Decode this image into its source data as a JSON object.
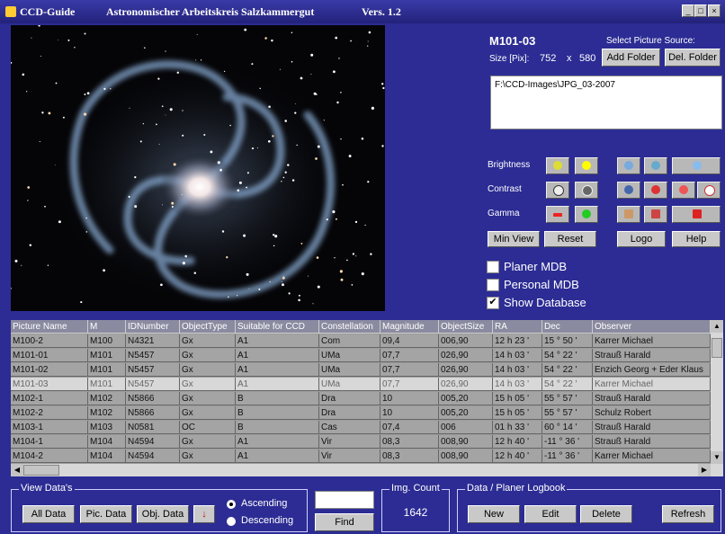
{
  "title_bar": {
    "app": "CCD-Guide",
    "subtitle": "Astronomischer Arbeitskreis Salzkammergut",
    "version": "Vers. 1.2"
  },
  "picture": {
    "name": "M101-03",
    "select_label": "Select Picture Source:",
    "size_label": "Size [Pix]:",
    "width": 752,
    "x": "x",
    "height": 580,
    "add_folder": "Add Folder",
    "del_folder": "Del. Folder",
    "path": "F:\\CCD-Images\\JPG_03-2007"
  },
  "adjust": {
    "brightness": "Brightness",
    "contrast": "Contrast",
    "gamma": "Gamma",
    "min_view": "Min View",
    "reset": "Reset",
    "logo": "Logo",
    "help": "Help"
  },
  "options": [
    "Planer MDB",
    "Personal MDB",
    "Show Database"
  ],
  "table": {
    "columns": [
      "Picture Name",
      "M",
      "IDNumber",
      "ObjectType",
      "Suitable for CCD",
      "Constellation",
      "Magnitude",
      "ObjectSize",
      "RA",
      "Dec",
      "Observer"
    ],
    "rows": [
      [
        "M100-2",
        "M100",
        "N4321",
        "Gx",
        "A1",
        "Com",
        "09,4",
        "006,90",
        "12 h 23 '",
        "15 ° 50 '",
        "Karrer Michael"
      ],
      [
        "M101-01",
        "M101",
        "N5457",
        "Gx",
        "A1",
        "UMa",
        "07,7",
        "026,90",
        "14 h 03 '",
        "54 ° 22 '",
        "Strauß Harald"
      ],
      [
        "M101-02",
        "M101",
        "N5457",
        "Gx",
        "A1",
        "UMa",
        "07,7",
        "026,90",
        "14 h 03 '",
        "54 ° 22 '",
        "Enzich Georg + Eder Klaus"
      ],
      [
        "M101-03",
        "M101",
        "N5457",
        "Gx",
        "A1",
        "UMa",
        "07,7",
        "026,90",
        "14 h 03 '",
        "54 ° 22 '",
        "Karrer Michael"
      ],
      [
        "M102-1",
        "M102",
        "N5866",
        "Gx",
        "B",
        "Dra",
        "10",
        "005,20",
        "15 h 05 '",
        "55 ° 57 '",
        "Strauß Harald"
      ],
      [
        "M102-2",
        "M102",
        "N5866",
        "Gx",
        "B",
        "Dra",
        "10",
        "005,20",
        "15 h 05 '",
        "55 ° 57 '",
        "Schulz Robert"
      ],
      [
        "M103-1",
        "M103",
        "N0581",
        "OC",
        "B",
        "Cas",
        "07,4",
        "006",
        "01 h 33 '",
        "60 ° 14 '",
        "Strauß Harald"
      ],
      [
        "M104-1",
        "M104",
        "N4594",
        "Gx",
        "A1",
        "Vir",
        "08,3",
        "008,90",
        "12 h 40 '",
        "-11 ° 36 '",
        "Strauß Harald"
      ],
      [
        "M104-2",
        "M104",
        "N4594",
        "Gx",
        "A1",
        "Vir",
        "08,3",
        "008,90",
        "12 h 40 '",
        "-11 ° 36 '",
        "Karrer Michael"
      ]
    ]
  },
  "view_data": {
    "title": "View Data's",
    "all": "All Data",
    "pic": "Pic. Data",
    "obj": "Obj. Data",
    "ascending": "Ascending",
    "descending": "Descending"
  },
  "find": "Find",
  "img_count": {
    "label": "Img. Count",
    "value": 1642
  },
  "logbook": {
    "title": "Data / Planer Logbook",
    "new": "New",
    "edit": "Edit",
    "delete": "Delete",
    "refresh": "Refresh"
  }
}
